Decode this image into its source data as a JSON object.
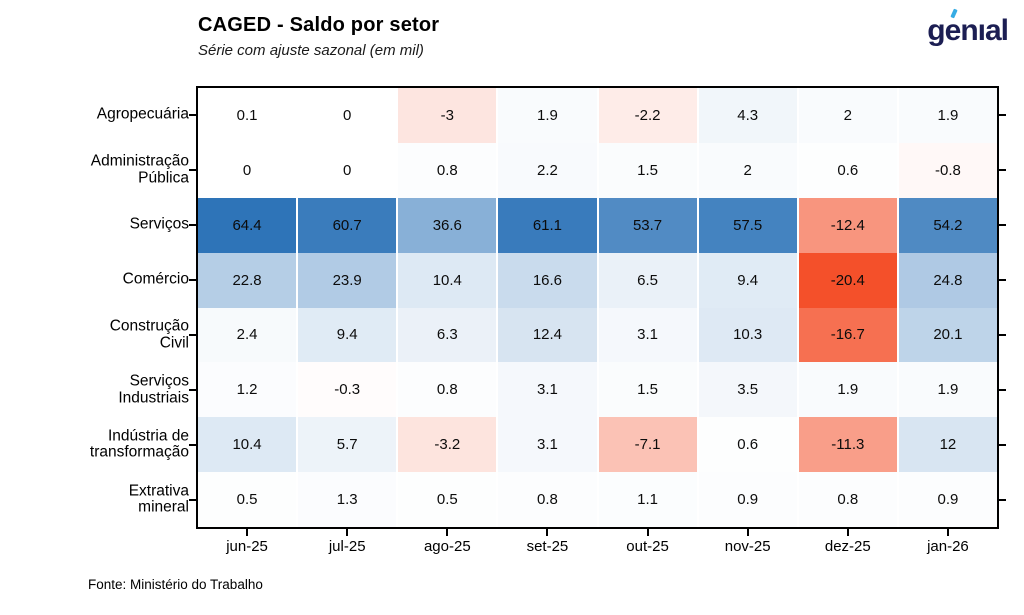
{
  "header": {
    "logo_text": "genial",
    "logo_color": "#1c1e53",
    "logo_accent_color": "#36ace4"
  },
  "chart_data": {
    "type": "heatmap",
    "title": "CAGED - Saldo por setor",
    "subtitle": "Série com ajuste sazonal (em mil)",
    "source": "Fonte: Ministério do Trabalho",
    "x_tick_labels": [
      "jun-25",
      "jul-25",
      "ago-25",
      "set-25",
      "out-25",
      "nov-25",
      "dez-25",
      "jan-26"
    ],
    "rows": [
      {
        "label_lines": [
          "Agropecuária"
        ],
        "values": [
          0.1,
          0,
          -3,
          1.9,
          -2.2,
          4.3,
          2,
          1.9
        ]
      },
      {
        "label_lines": [
          "Administração",
          "Pública"
        ],
        "values": [
          0,
          0,
          0.8,
          2.2,
          1.5,
          2,
          0.6,
          -0.8
        ]
      },
      {
        "label_lines": [
          "Serviços"
        ],
        "values": [
          64.4,
          60.7,
          36.6,
          61.1,
          53.7,
          57.5,
          -12.4,
          54.2
        ]
      },
      {
        "label_lines": [
          "Comércio"
        ],
        "values": [
          22.8,
          23.9,
          10.4,
          16.6,
          6.5,
          9.4,
          -20.4,
          24.8
        ]
      },
      {
        "label_lines": [
          "Construção",
          "Civil"
        ],
        "values": [
          2.4,
          9.4,
          6.3,
          12.4,
          3.1,
          10.3,
          -16.7,
          20.1
        ]
      },
      {
        "label_lines": [
          "Serviços",
          "Industriais"
        ],
        "values": [
          1.2,
          -0.3,
          0.8,
          3.1,
          1.5,
          3.5,
          1.9,
          1.9
        ]
      },
      {
        "label_lines": [
          "Indústria de",
          "transformação"
        ],
        "values": [
          10.4,
          5.7,
          -3.2,
          3.1,
          -7.1,
          0.6,
          -11.3,
          12
        ]
      },
      {
        "label_lines": [
          "Extrativa",
          "mineral"
        ],
        "values": [
          0.5,
          1.3,
          0.5,
          0.8,
          1.1,
          0.9,
          0.8,
          0.9
        ]
      }
    ],
    "color_scale": {
      "zero_color": "#ffffff",
      "positive_max_color": "#2e74b8",
      "negative_max_color": "#f4502a",
      "vmin": -20.4,
      "vmax": 64.4
    },
    "layout_hints": {
      "grid": "off",
      "legend": "none",
      "value_labels": "on"
    }
  }
}
